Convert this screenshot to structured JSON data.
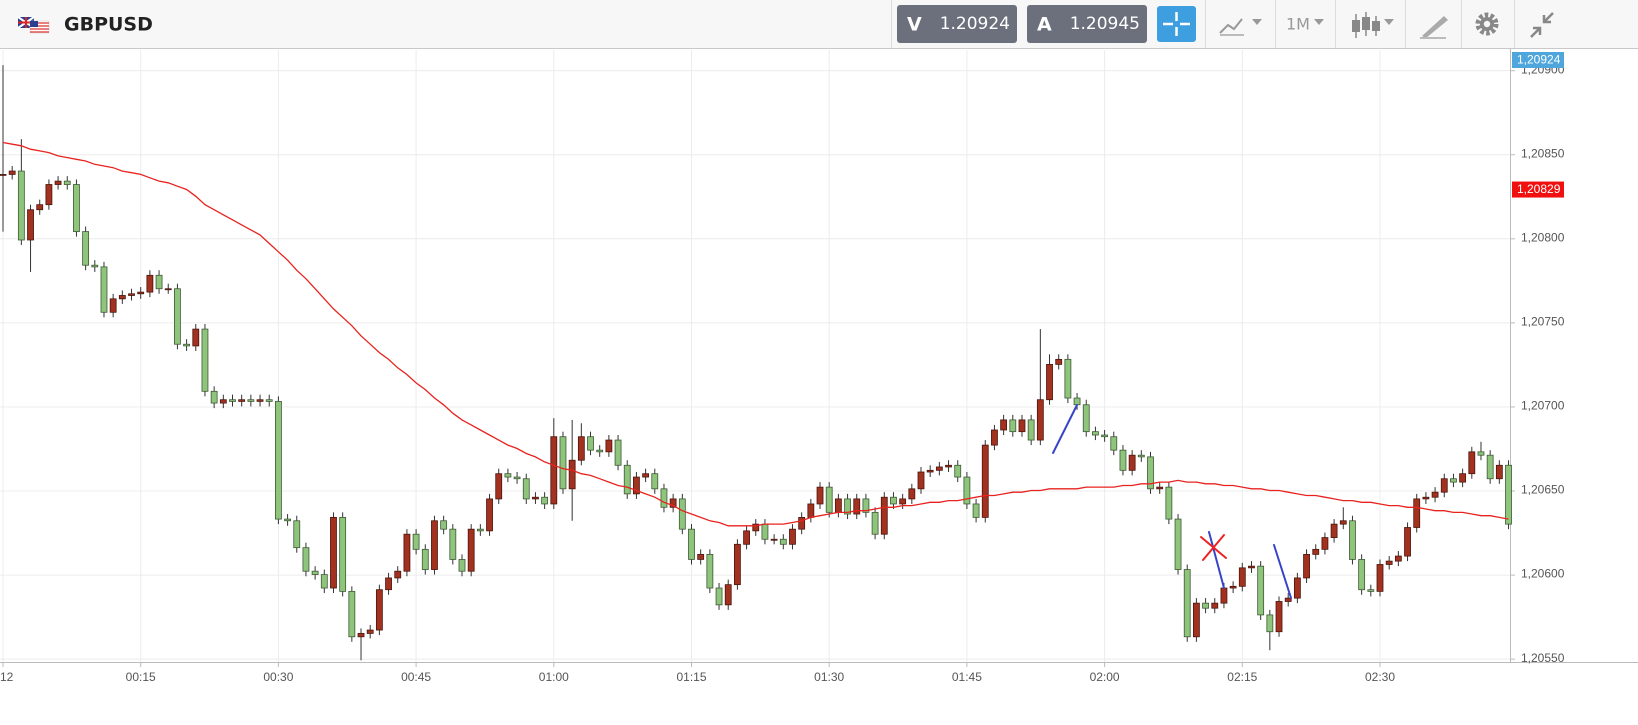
{
  "header": {
    "symbol": "GBPUSD",
    "bid_label": "V",
    "bid": "1.20924",
    "ask_label": "A",
    "ask": "1.20945",
    "timeframe": "1M"
  },
  "chart_data": {
    "type": "candlestick",
    "categories": [
      "12",
      null,
      null,
      null,
      null,
      null,
      null,
      null,
      null,
      null,
      null,
      null,
      null,
      null,
      null,
      "00:15",
      null,
      null,
      null,
      null,
      null,
      null,
      null,
      null,
      null,
      null,
      null,
      null,
      null,
      null,
      "00:30",
      null,
      null,
      null,
      null,
      null,
      null,
      null,
      null,
      null,
      null,
      null,
      null,
      null,
      null,
      "00:45",
      null,
      null,
      null,
      null,
      null,
      null,
      null,
      null,
      null,
      null,
      null,
      null,
      null,
      null,
      "01:00",
      null,
      null,
      null,
      null,
      null,
      null,
      null,
      null,
      null,
      null,
      null,
      null,
      null,
      null,
      "01:15",
      null,
      null,
      null,
      null,
      null,
      null,
      null,
      null,
      null,
      null,
      null,
      null,
      null,
      null,
      "01:30",
      null,
      null,
      null,
      null,
      null,
      null,
      null,
      null,
      null,
      null,
      null,
      null,
      null,
      null,
      "01:45",
      null,
      null,
      null,
      null,
      null,
      null,
      null,
      null,
      null,
      null,
      null,
      null,
      null,
      null,
      "02:00",
      null,
      null,
      null,
      null,
      null,
      null,
      null,
      null,
      null,
      null,
      null,
      null,
      null,
      null,
      "02:15",
      null,
      null,
      null,
      null,
      null,
      null,
      null,
      null,
      null,
      null,
      null,
      null,
      null,
      null,
      "02:30",
      null,
      null,
      null,
      null,
      null,
      null,
      null,
      null,
      null,
      null,
      null,
      null,
      null,
      null
    ],
    "open": [
      1.20838,
      1.20838,
      1.2084,
      1.20799,
      1.20817,
      1.2082,
      1.20832,
      1.20834,
      1.20832,
      1.20804,
      1.20784,
      1.20783,
      1.20756,
      1.20764,
      1.20766,
      1.20767,
      1.20768,
      1.20778,
      1.2077,
      1.2077,
      1.20737,
      1.20736,
      1.20746,
      1.20709,
      1.20702,
      1.20704,
      1.20703,
      1.20704,
      1.20703,
      1.20704,
      1.20703,
      1.20633,
      1.20632,
      1.20616,
      1.20602,
      1.206,
      1.20592,
      1.20634,
      1.2059,
      1.20563,
      1.20565,
      1.20567,
      1.20591,
      1.20598,
      1.20602,
      1.20624,
      1.20615,
      1.20603,
      1.20632,
      1.20627,
      1.20609,
      1.20602,
      1.20627,
      1.20626,
      1.20645,
      1.2066,
      1.20658,
      1.20657,
      1.20645,
      1.20646,
      1.20642,
      1.20682,
      1.20651,
      1.20668,
      1.20682,
      1.20674,
      1.20673,
      1.2068,
      1.20665,
      1.20648,
      1.20658,
      1.2066,
      1.20651,
      1.2064,
      1.20645,
      1.20627,
      1.20609,
      1.20612,
      1.20592,
      1.20582,
      1.20594,
      1.20618,
      1.20626,
      1.2063,
      1.20621,
      1.20621,
      1.20618,
      1.20627,
      1.20634,
      1.20642,
      1.20652,
      1.20637,
      1.20645,
      1.20636,
      1.20645,
      1.20637,
      1.20624,
      1.20646,
      1.20642,
      1.20645,
      1.20651,
      1.20661,
      1.20662,
      1.20664,
      1.20665,
      1.20658,
      1.20642,
      1.20634,
      1.20677,
      1.20686,
      1.20692,
      1.20685,
      1.20692,
      1.2068,
      1.20704,
      1.20725,
      1.20728,
      1.20705,
      1.20701,
      1.20685,
      1.20683,
      1.20682,
      1.20674,
      1.20662,
      1.20671,
      1.2067,
      1.20651,
      1.20652,
      1.20633,
      1.20603,
      1.20563,
      1.20583,
      1.2058,
      1.20583,
      1.20592,
      1.20593,
      1.20604,
      1.20605,
      1.20576,
      1.20566,
      1.20584,
      1.20586,
      1.20598,
      1.20612,
      1.20615,
      1.20622,
      1.2063,
      1.20632,
      1.20609,
      1.20591,
      1.2059,
      1.20606,
      1.20608,
      1.20611,
      1.20628,
      1.20645,
      1.20646,
      1.20649,
      1.20657,
      1.20655,
      1.2066,
      1.20673,
      1.20671,
      1.20657,
      1.20665
    ],
    "high": [
      1.20903,
      1.20843,
      1.20859,
      1.2082,
      1.20823,
      1.20835,
      1.20837,
      1.20837,
      1.20835,
      1.20807,
      1.20787,
      1.20786,
      1.20767,
      1.20769,
      1.2077,
      1.20771,
      1.20781,
      1.20781,
      1.20773,
      1.20773,
      1.2074,
      1.20749,
      1.20749,
      1.20712,
      1.20707,
      1.20707,
      1.20707,
      1.20707,
      1.20707,
      1.20707,
      1.20706,
      1.20636,
      1.20635,
      1.20619,
      1.20605,
      1.20603,
      1.20637,
      1.20637,
      1.20593,
      1.20568,
      1.2057,
      1.20594,
      1.20601,
      1.20605,
      1.20627,
      1.20627,
      1.20618,
      1.20635,
      1.20635,
      1.2063,
      1.20612,
      1.2063,
      1.2063,
      1.20648,
      1.20663,
      1.20663,
      1.20661,
      1.2066,
      1.20649,
      1.20649,
      1.20693,
      1.20685,
      1.20692,
      1.2069,
      1.20685,
      1.20677,
      1.20683,
      1.20683,
      1.20668,
      1.20661,
      1.20663,
      1.20663,
      1.20654,
      1.20648,
      1.20648,
      1.2063,
      1.20615,
      1.20615,
      1.20595,
      1.20597,
      1.20621,
      1.20629,
      1.20633,
      1.20633,
      1.20624,
      1.20624,
      1.2063,
      1.20637,
      1.20645,
      1.20655,
      1.20655,
      1.20648,
      1.20648,
      1.20648,
      1.20648,
      1.2064,
      1.20649,
      1.20649,
      1.20648,
      1.20654,
      1.20664,
      1.20665,
      1.20667,
      1.20668,
      1.20668,
      1.20661,
      1.20645,
      1.2068,
      1.20689,
      1.20695,
      1.20695,
      1.20695,
      1.20695,
      1.20746,
      1.20731,
      1.20731,
      1.20731,
      1.20708,
      1.20704,
      1.20688,
      1.20686,
      1.20685,
      1.20677,
      1.20674,
      1.20674,
      1.20673,
      1.20655,
      1.20655,
      1.20636,
      1.20606,
      1.20586,
      1.20586,
      1.20586,
      1.20595,
      1.20596,
      1.20607,
      1.20608,
      1.20608,
      1.20579,
      1.20587,
      1.20589,
      1.20601,
      1.20615,
      1.20618,
      1.20625,
      1.20633,
      1.2064,
      1.20635,
      1.20612,
      1.20594,
      1.20609,
      1.20611,
      1.20614,
      1.20631,
      1.20648,
      1.20649,
      1.20652,
      1.2066,
      1.2066,
      1.20663,
      1.20676,
      1.20679,
      1.20674,
      1.20668,
      1.20668
    ],
    "low": [
      1.20804,
      1.20835,
      1.20796,
      1.2078,
      1.20814,
      1.20817,
      1.20829,
      1.20829,
      1.20801,
      1.20781,
      1.2078,
      1.20753,
      1.20753,
      1.20761,
      1.20763,
      1.20764,
      1.20765,
      1.20767,
      1.20767,
      1.20734,
      1.20733,
      1.20733,
      1.20706,
      1.20699,
      1.20699,
      1.207,
      1.207,
      1.207,
      1.207,
      1.207,
      1.2063,
      1.20629,
      1.20613,
      1.20599,
      1.20597,
      1.20589,
      1.20589,
      1.20587,
      1.2056,
      1.20549,
      1.20562,
      1.20564,
      1.20588,
      1.20595,
      1.20599,
      1.20612,
      1.206,
      1.206,
      1.20624,
      1.20606,
      1.20599,
      1.20599,
      1.20623,
      1.20623,
      1.20642,
      1.20655,
      1.20654,
      1.20642,
      1.20642,
      1.20639,
      1.20639,
      1.20648,
      1.20632,
      1.20665,
      1.20671,
      1.2067,
      1.2067,
      1.20662,
      1.20645,
      1.20645,
      1.20655,
      1.20648,
      1.20637,
      1.20637,
      1.20624,
      1.20606,
      1.20606,
      1.20589,
      1.20579,
      1.20579,
      1.20591,
      1.20615,
      1.20623,
      1.20618,
      1.20618,
      1.20615,
      1.20615,
      1.20624,
      1.20631,
      1.20639,
      1.20634,
      1.20634,
      1.20633,
      1.20633,
      1.20634,
      1.20621,
      1.20621,
      1.20639,
      1.20639,
      1.20642,
      1.20648,
      1.20658,
      1.20659,
      1.20661,
      1.20655,
      1.20639,
      1.20631,
      1.20631,
      1.20674,
      1.20683,
      1.20682,
      1.20682,
      1.20677,
      1.20677,
      1.20701,
      1.20722,
      1.20702,
      1.20698,
      1.20682,
      1.2068,
      1.20679,
      1.20671,
      1.20659,
      1.20659,
      1.20667,
      1.20648,
      1.20648,
      1.2063,
      1.206,
      1.2056,
      1.2056,
      1.20577,
      1.20577,
      1.2058,
      1.20589,
      1.2059,
      1.20601,
      1.20573,
      1.20555,
      1.20563,
      1.20581,
      1.20583,
      1.20595,
      1.20609,
      1.20612,
      1.20619,
      1.20627,
      1.20606,
      1.20588,
      1.20587,
      1.20587,
      1.20603,
      1.20605,
      1.20608,
      1.20625,
      1.20642,
      1.20643,
      1.20646,
      1.20652,
      1.20652,
      1.20657,
      1.20668,
      1.20654,
      1.20654,
      1.20627
    ],
    "close": [
      1.20838,
      1.2084,
      1.20799,
      1.20817,
      1.2082,
      1.20832,
      1.20834,
      1.20832,
      1.20804,
      1.20784,
      1.20783,
      1.20756,
      1.20764,
      1.20766,
      1.20767,
      1.20768,
      1.20778,
      1.2077,
      1.2077,
      1.20737,
      1.20736,
      1.20746,
      1.20709,
      1.20702,
      1.20704,
      1.20703,
      1.20704,
      1.20703,
      1.20704,
      1.20703,
      1.20633,
      1.20632,
      1.20616,
      1.20602,
      1.206,
      1.20592,
      1.20634,
      1.2059,
      1.20563,
      1.20565,
      1.20567,
      1.20591,
      1.20598,
      1.20602,
      1.20624,
      1.20615,
      1.20603,
      1.20632,
      1.20627,
      1.20609,
      1.20602,
      1.20627,
      1.20626,
      1.20645,
      1.2066,
      1.20658,
      1.20657,
      1.20645,
      1.20646,
      1.20642,
      1.20682,
      1.20651,
      1.20668,
      1.20682,
      1.20674,
      1.20673,
      1.2068,
      1.20665,
      1.20648,
      1.20658,
      1.2066,
      1.20651,
      1.2064,
      1.20645,
      1.20627,
      1.20609,
      1.20612,
      1.20592,
      1.20582,
      1.20594,
      1.20618,
      1.20626,
      1.2063,
      1.20621,
      1.20621,
      1.20618,
      1.20627,
      1.20634,
      1.20642,
      1.20652,
      1.20637,
      1.20645,
      1.20636,
      1.20645,
      1.20637,
      1.20624,
      1.20646,
      1.20642,
      1.20645,
      1.20651,
      1.20661,
      1.20662,
      1.20664,
      1.20665,
      1.20658,
      1.20642,
      1.20634,
      1.20677,
      1.20686,
      1.20692,
      1.20685,
      1.20692,
      1.2068,
      1.20704,
      1.20725,
      1.20728,
      1.20705,
      1.20701,
      1.20685,
      1.20683,
      1.20682,
      1.20674,
      1.20662,
      1.20671,
      1.2067,
      1.20651,
      1.20652,
      1.20633,
      1.20603,
      1.20563,
      1.20583,
      1.2058,
      1.20583,
      1.20592,
      1.20593,
      1.20604,
      1.20605,
      1.20576,
      1.20566,
      1.20584,
      1.20586,
      1.20598,
      1.20612,
      1.20615,
      1.20622,
      1.2063,
      1.20632,
      1.20609,
      1.20591,
      1.2059,
      1.20606,
      1.20608,
      1.20611,
      1.20628,
      1.20645,
      1.20646,
      1.20649,
      1.20657,
      1.20655,
      1.2066,
      1.20673,
      1.20671,
      1.20657,
      1.20665,
      1.2063
    ],
    "up_color": "#a3311f",
    "down_color": "#8fc47d",
    "moving_average": {
      "color": "#e8231f",
      "values": [
        1.20857,
        1.20856,
        1.20855,
        1.20853,
        1.20852,
        1.20851,
        1.20849,
        1.20848,
        1.20847,
        1.20846,
        1.20844,
        1.20843,
        1.20842,
        1.2084,
        1.20839,
        1.20838,
        1.20836,
        1.20834,
        1.20833,
        1.20831,
        1.20829,
        1.20825,
        1.2082,
        1.20817,
        1.20814,
        1.20811,
        1.20808,
        1.20805,
        1.20802,
        1.20797,
        1.20792,
        1.20787,
        1.20781,
        1.20776,
        1.2077,
        1.20764,
        1.20758,
        1.20753,
        1.20748,
        1.20742,
        1.20737,
        1.20732,
        1.20728,
        1.20723,
        1.20719,
        1.20714,
        1.2071,
        1.20705,
        1.20701,
        1.20696,
        1.20692,
        1.20689,
        1.20686,
        1.20683,
        1.2068,
        1.20677,
        1.20675,
        1.20672,
        1.2067,
        1.20667,
        1.20665,
        1.20663,
        1.20662,
        1.2066,
        1.20659,
        1.20657,
        1.20655,
        1.20653,
        1.20652,
        1.2065,
        1.20648,
        1.20646,
        1.20643,
        1.20641,
        1.20638,
        1.20636,
        1.20634,
        1.20632,
        1.20631,
        1.20629,
        1.20629,
        1.20629,
        1.20629,
        1.2063,
        1.2063,
        1.2063,
        1.20631,
        1.20632,
        1.20634,
        1.20635,
        1.20636,
        1.20637,
        1.20637,
        1.20638,
        1.20638,
        1.20639,
        1.2064,
        1.2064,
        1.20641,
        1.20641,
        1.20642,
        1.20643,
        1.20643,
        1.20644,
        1.20644,
        1.20645,
        1.20646,
        1.20647,
        1.20647,
        1.20648,
        1.20649,
        1.20649,
        1.2065,
        1.2065,
        1.20651,
        1.20651,
        1.20651,
        1.20651,
        1.20652,
        1.20652,
        1.20652,
        1.20652,
        1.20653,
        1.20653,
        1.20654,
        1.20654,
        1.20655,
        1.20655,
        1.20656,
        1.20655,
        1.20655,
        1.20654,
        1.20654,
        1.20653,
        1.20653,
        1.20652,
        1.20651,
        1.20651,
        1.2065,
        1.2065,
        1.20649,
        1.20648,
        1.20647,
        1.20647,
        1.20646,
        1.20645,
        1.20644,
        1.20644,
        1.20643,
        1.20643,
        1.20642,
        1.20641,
        1.20641,
        1.2064,
        1.2064,
        1.20639,
        1.20638,
        1.20638,
        1.20637,
        1.20637,
        1.20636,
        1.20635,
        1.20635,
        1.20634,
        1.20633
      ]
    },
    "ylim": [
      1.20548,
      1.20912
    ],
    "yticks": [
      {
        "value": 1.2055,
        "label": "1,20550"
      },
      {
        "value": 1.206,
        "label": "1,20600"
      },
      {
        "value": 1.2065,
        "label": "1,20650"
      },
      {
        "value": 1.207,
        "label": "1,20700"
      },
      {
        "value": 1.2075,
        "label": "1,20750"
      },
      {
        "value": 1.208,
        "label": "1,20800"
      },
      {
        "value": 1.2085,
        "label": "1,20850"
      },
      {
        "value": 1.209,
        "label": "1,20900"
      }
    ],
    "price_tags": [
      {
        "value": 1.20924,
        "label": "1,20924",
        "color": "#4ea6dc"
      },
      {
        "value": 1.20829,
        "label": "1,20829",
        "color": "#f01010"
      }
    ],
    "grid": true
  }
}
